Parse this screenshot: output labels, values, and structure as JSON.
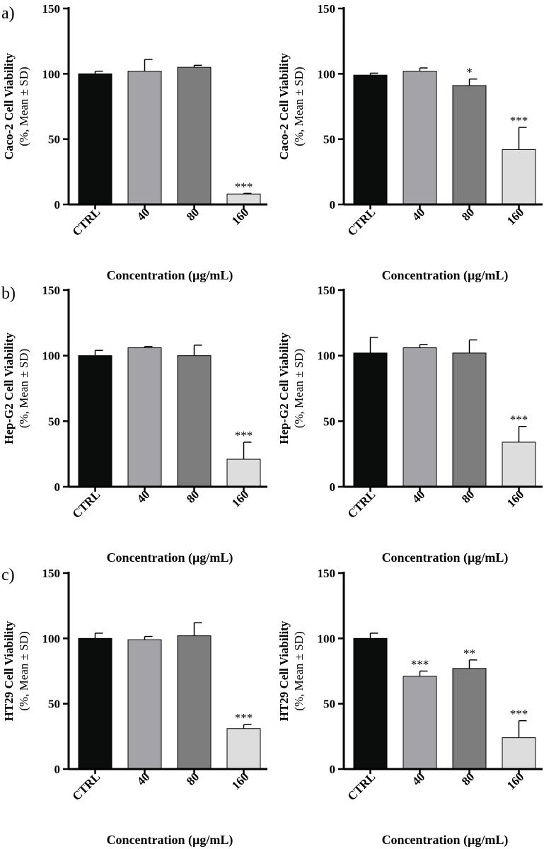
{
  "panel_labels": [
    "a)",
    "b)",
    "c)"
  ],
  "colors": {
    "CTRL": "#0b0c0c",
    "40": "#a4a3a7",
    "80": "#7d7d7e",
    "160": "#dcdddc",
    "axis": "#000000"
  },
  "chart_data": [
    {
      "type": "bar",
      "ylabel_main": "Caco-2 Cell Viability",
      "ylabel_sub": "(%, Mean ± SD)",
      "xlabel": "Concentration (µg/mL)",
      "categories": [
        "CTRL",
        "40",
        "80",
        "160"
      ],
      "values": [
        100,
        102,
        105,
        8
      ],
      "errors": [
        2,
        9,
        1.5,
        0.5
      ],
      "significance": [
        "",
        "",
        "",
        "***"
      ],
      "ylim": [
        0,
        150
      ],
      "yticks": [
        0,
        50,
        100,
        150
      ]
    },
    {
      "type": "bar",
      "ylabel_main": "Caco-2 Cell Viability",
      "ylabel_sub": "(%, Mean ± SD)",
      "xlabel": "Concentration (µg/mL)",
      "categories": [
        "CTRL",
        "40",
        "80",
        "160"
      ],
      "values": [
        99,
        102,
        91,
        42
      ],
      "errors": [
        1.5,
        2.5,
        5,
        17
      ],
      "significance": [
        "",
        "",
        "*",
        "***"
      ],
      "ylim": [
        0,
        150
      ],
      "yticks": [
        0,
        50,
        100,
        150
      ]
    },
    {
      "type": "bar",
      "ylabel_main": "Hep-G2 Cell Viability",
      "ylabel_sub": "(%, Mean ± SD)",
      "xlabel": "Concentration (µg/mL)",
      "categories": [
        "CTRL",
        "40",
        "80",
        "160"
      ],
      "values": [
        100,
        106,
        100,
        21
      ],
      "errors": [
        4,
        1,
        8,
        13
      ],
      "significance": [
        "",
        "",
        "",
        "***"
      ],
      "ylim": [
        0,
        150
      ],
      "yticks": [
        0,
        50,
        100,
        150
      ]
    },
    {
      "type": "bar",
      "ylabel_main": "Hep-G2 Cell Viability",
      "ylabel_sub": "(%, Mean ± SD)",
      "xlabel": "Concentration (µg/mL)",
      "categories": [
        "CTRL",
        "40",
        "80",
        "160"
      ],
      "values": [
        102,
        106,
        102,
        34
      ],
      "errors": [
        12,
        2.5,
        10,
        12
      ],
      "significance": [
        "",
        "",
        "",
        "***"
      ],
      "ylim": [
        0,
        150
      ],
      "yticks": [
        0,
        50,
        100,
        150
      ]
    },
    {
      "type": "bar",
      "ylabel_main": "HT29 Cell Viability",
      "ylabel_sub": "(%, Mean ± SD)",
      "xlabel": "Concentration (µg/mL)",
      "categories": [
        "CTRL",
        "40",
        "80",
        "160"
      ],
      "values": [
        100,
        99,
        102,
        31
      ],
      "errors": [
        4,
        2.5,
        10,
        3
      ],
      "significance": [
        "",
        "",
        "",
        "***"
      ],
      "ylim": [
        0,
        150
      ],
      "yticks": [
        0,
        50,
        100,
        150
      ]
    },
    {
      "type": "bar",
      "ylabel_main": "HT29 Cell Viability",
      "ylabel_sub": "(%, Mean ± SD)",
      "xlabel": "Concentration (µg/mL)",
      "categories": [
        "CTRL",
        "40",
        "80",
        "160"
      ],
      "values": [
        100,
        71,
        77,
        24
      ],
      "errors": [
        4,
        4,
        6.5,
        13
      ],
      "significance": [
        "",
        "***",
        "**",
        "***"
      ],
      "ylim": [
        0,
        150
      ],
      "yticks": [
        0,
        50,
        100,
        150
      ]
    }
  ]
}
